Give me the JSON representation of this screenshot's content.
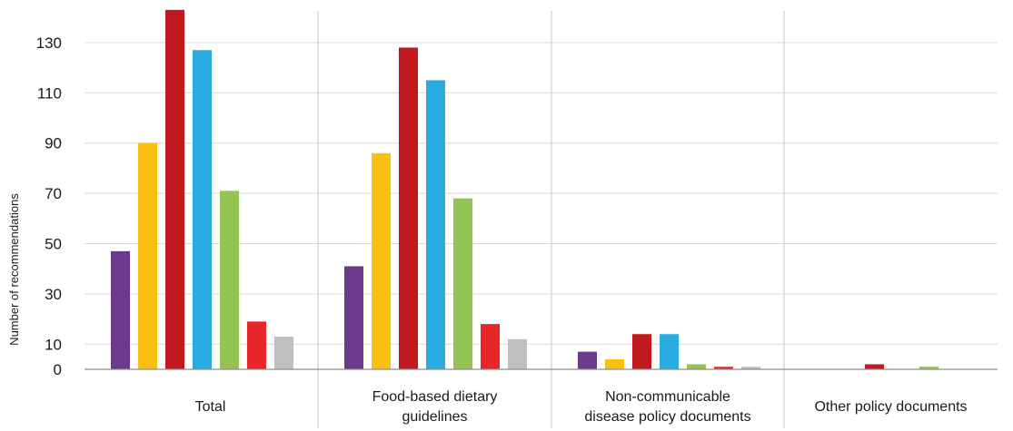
{
  "chart_data": {
    "type": "bar",
    "ylabel": "Number of recommendations",
    "ylim": [
      0,
      145
    ],
    "yticks": [
      0,
      10,
      30,
      50,
      70,
      90,
      110,
      130
    ],
    "grid": true,
    "legend": "none",
    "categories": [
      [
        "Total"
      ],
      [
        "Food-based dietary",
        "guidelines"
      ],
      [
        "Non-communicable",
        "disease policy documents"
      ],
      [
        "Other policy documents"
      ]
    ],
    "series": [
      {
        "color": "#6b3a8c",
        "values": [
          47,
          41,
          7,
          0
        ]
      },
      {
        "color": "#fbbf12",
        "values": [
          90,
          86,
          4,
          0
        ]
      },
      {
        "color": "#c0191f",
        "values": [
          143,
          128,
          14,
          2
        ]
      },
      {
        "color": "#29abe2",
        "values": [
          127,
          115,
          14,
          0
        ]
      },
      {
        "color": "#92c353",
        "values": [
          71,
          68,
          2,
          1
        ]
      },
      {
        "color": "#e8262a",
        "values": [
          19,
          18,
          1,
          0
        ]
      },
      {
        "color": "#bfbfbf",
        "values": [
          13,
          12,
          1,
          0
        ]
      }
    ]
  }
}
